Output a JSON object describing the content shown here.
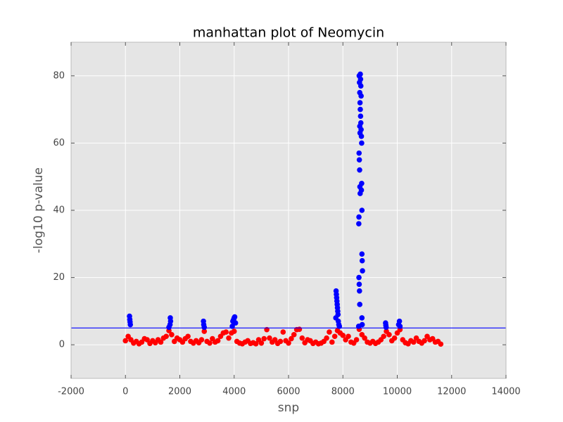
{
  "chart_data": {
    "type": "scatter",
    "title": "manhattan plot of Neomycin",
    "x_label": "snp",
    "y_label": "-log10 p-value",
    "xlim": [
      -2000,
      14000
    ],
    "xticks": [
      -2000,
      0,
      2000,
      4000,
      6000,
      8000,
      10000,
      12000,
      14000
    ],
    "ylim": [
      -10,
      90
    ],
    "yticks": [
      0,
      20,
      40,
      60,
      80
    ],
    "grid": true,
    "threshold": 5,
    "threshold_color": "#0000ff",
    "series": [
      {
        "color": "#ff0000",
        "x": [
          0,
          100,
          200,
          300,
          400,
          500,
          600,
          700,
          800,
          900,
          1000,
          1100,
          1200,
          1300,
          1400,
          1500,
          1600,
          1700,
          1800,
          1900,
          2000,
          2100,
          2200,
          2300,
          2400,
          2500,
          2600,
          2700,
          2800,
          2900,
          3000,
          3100,
          3200,
          3300,
          3400,
          3500,
          3600,
          3700,
          3800,
          3900,
          4000,
          4100,
          4200,
          4300,
          4400,
          4500,
          4600,
          4700,
          4800,
          4900,
          5000,
          5100,
          5200,
          5300,
          5400,
          5500,
          5600,
          5700,
          5800,
          5900,
          6000,
          6100,
          6200,
          6300,
          6400,
          6500,
          6600,
          6700,
          6800,
          6900,
          7000,
          7100,
          7200,
          7300,
          7400,
          7500,
          7600,
          7700,
          7800,
          7900,
          8000,
          8100,
          8200,
          8300,
          8400,
          8500,
          8600,
          8700,
          8800,
          8900,
          9000,
          9100,
          9200,
          9300,
          9400,
          9500,
          9600,
          9700,
          9800,
          9900,
          10000,
          10100,
          10200,
          10300,
          10400,
          10500,
          10600,
          10700,
          10800,
          10900,
          11000,
          11100,
          11200,
          11300,
          11400,
          11500,
          11600
        ],
        "values": [
          1.2,
          2.5,
          1.5,
          0.5,
          1.0,
          0.3,
          0.8,
          1.8,
          1.5,
          0.4,
          1.2,
          0.6,
          1.5,
          0.8,
          2.0,
          2.5,
          4.2,
          3.0,
          1.0,
          2.0,
          1.5,
          0.8,
          1.8,
          2.5,
          1.0,
          0.5,
          1.2,
          0.6,
          1.5,
          4.0,
          1.0,
          0.5,
          1.8,
          0.8,
          1.2,
          2.5,
          3.5,
          3.8,
          2.0,
          3.5,
          4.0,
          1.0,
          0.5,
          0.3,
          0.8,
          1.2,
          0.4,
          0.6,
          0.3,
          1.5,
          0.5,
          1.8,
          4.5,
          2.0,
          0.8,
          1.5,
          0.4,
          1.0,
          3.8,
          1.2,
          0.5,
          1.8,
          3.0,
          4.5,
          4.6,
          2.0,
          0.6,
          1.5,
          1.2,
          0.4,
          0.8,
          0.3,
          0.5,
          1.0,
          2.0,
          3.8,
          0.8,
          2.5,
          4.2,
          3.5,
          2.8,
          1.5,
          2.5,
          0.8,
          0.5,
          1.5,
          4.6,
          3.0,
          2.0,
          0.8,
          0.5,
          1.0,
          0.4,
          0.8,
          1.5,
          2.5,
          4.0,
          3.0,
          1.2,
          2.0,
          3.5,
          4.5,
          1.5,
          0.6,
          0.3,
          1.2,
          0.8,
          2.0,
          1.0,
          0.5,
          1.2,
          2.5,
          1.5,
          1.8,
          0.8,
          1.0,
          0.2
        ]
      },
      {
        "color": "#0000ff",
        "x": [
          150,
          160,
          170,
          180,
          1650,
          1660,
          1640,
          1600,
          2870,
          2880,
          2900,
          3950,
          3980,
          4000,
          4020,
          4050,
          3930,
          7750,
          7760,
          7770,
          7780,
          7790,
          7800,
          7810,
          7820,
          7740,
          7830,
          7850,
          7870,
          8600,
          8610,
          8620,
          8630,
          8640,
          8650,
          8660,
          8670,
          8680,
          8690,
          8595,
          8605,
          8615,
          8625,
          8635,
          8700,
          8590,
          8585,
          8700,
          8710,
          8720,
          8590,
          8600,
          8610,
          8620,
          8700,
          8710,
          8580,
          8690,
          8680,
          8640,
          8650,
          8660,
          8670,
          8620,
          8630,
          9570,
          9580,
          9590,
          10050,
          10080,
          10100
        ],
        "values": [
          8.5,
          7.5,
          6.8,
          6.0,
          8.0,
          7.0,
          6.0,
          5.2,
          7.0,
          6.0,
          5.2,
          7.0,
          7.5,
          8.0,
          8.3,
          6.5,
          5.5,
          16,
          15,
          14,
          13,
          12,
          11,
          10,
          9,
          8,
          7,
          6,
          5.5,
          80,
          78,
          75,
          72,
          70,
          68,
          66,
          64,
          62,
          60,
          57,
          55,
          52,
          47,
          45,
          40,
          38,
          36,
          27,
          25,
          22,
          20,
          18,
          16,
          12,
          8,
          6,
          5.5,
          48,
          46,
          80.5,
          79,
          77,
          74,
          65,
          63,
          6.5,
          5.8,
          5.2,
          6.0,
          7.0,
          5.5
        ]
      }
    ]
  }
}
